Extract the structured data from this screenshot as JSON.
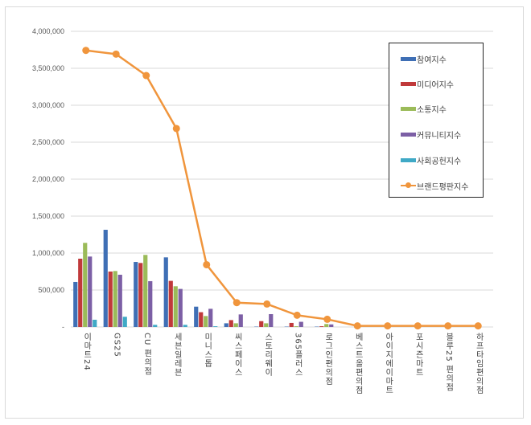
{
  "chart_data": {
    "type": "bar+line",
    "title": "",
    "xlabel": "",
    "ylabel": "",
    "ylim": [
      0,
      4000000
    ],
    "yticks": [
      0,
      500000,
      1000000,
      1500000,
      2000000,
      2500000,
      3000000,
      3500000,
      4000000
    ],
    "ytick_labels": [
      "-",
      "500,000",
      "1,000,000",
      "1,500,000",
      "2,000,000",
      "2,500,000",
      "3,000,000",
      "3,500,000",
      "4,000,000"
    ],
    "grid": true,
    "legend_position": "upper right (inside)",
    "categories": [
      "이마트24",
      "GS25",
      "CU 편의점",
      "세븐일레븐",
      "미니스톱",
      "씨스페이스",
      "스토리웨이",
      "365플러스",
      "로그인편의점",
      "베스트올편의점",
      "아이지에이마트",
      "포시즌마트",
      "블루25 편의점",
      "하프타임편의점"
    ],
    "series": [
      {
        "name": "참여지수",
        "type": "bar",
        "color": "#3f6fb5",
        "values": [
          609000,
          1315000,
          880000,
          942000,
          275000,
          50000,
          5000,
          5000,
          5000,
          0,
          0,
          0,
          0,
          0
        ]
      },
      {
        "name": "미디어지수",
        "type": "bar",
        "color": "#c0393a",
        "values": [
          924000,
          750000,
          866000,
          624000,
          200000,
          93000,
          79000,
          55000,
          10000,
          0,
          0,
          0,
          0,
          0
        ]
      },
      {
        "name": "소통지수",
        "type": "bar",
        "color": "#9bbb59",
        "values": [
          1138000,
          757000,
          975000,
          551000,
          148000,
          50000,
          50000,
          10000,
          40000,
          0,
          0,
          0,
          0,
          0
        ]
      },
      {
        "name": "커뮤니티지수",
        "type": "bar",
        "color": "#7c5fa5",
        "values": [
          953000,
          707000,
          620000,
          515000,
          246000,
          170000,
          174000,
          70000,
          35000,
          0,
          0,
          0,
          0,
          0
        ]
      },
      {
        "name": "사회공헌지수",
        "type": "bar",
        "color": "#3fa9c6",
        "values": [
          98000,
          138000,
          29000,
          29000,
          10000,
          0,
          0,
          0,
          0,
          0,
          0,
          0,
          0,
          0
        ]
      },
      {
        "name": "브랜드평판지수",
        "type": "line",
        "color": "#f0953c",
        "values": [
          3742000,
          3692000,
          3402000,
          2685000,
          843000,
          329000,
          311000,
          159000,
          104000,
          15000,
          15000,
          15000,
          15000,
          15000
        ]
      }
    ]
  },
  "legend": {
    "items": [
      {
        "label": "참여지수",
        "color": "#3f6fb5",
        "kind": "bar"
      },
      {
        "label": "미디어지수",
        "color": "#c0393a",
        "kind": "bar"
      },
      {
        "label": "소통지수",
        "color": "#9bbb59",
        "kind": "bar"
      },
      {
        "label": "커뮤니티지수",
        "color": "#7c5fa5",
        "kind": "bar"
      },
      {
        "label": "사회공헌지수",
        "color": "#3fa9c6",
        "kind": "bar"
      },
      {
        "label": "브랜드평판지수",
        "color": "#f0953c",
        "kind": "line"
      }
    ]
  }
}
